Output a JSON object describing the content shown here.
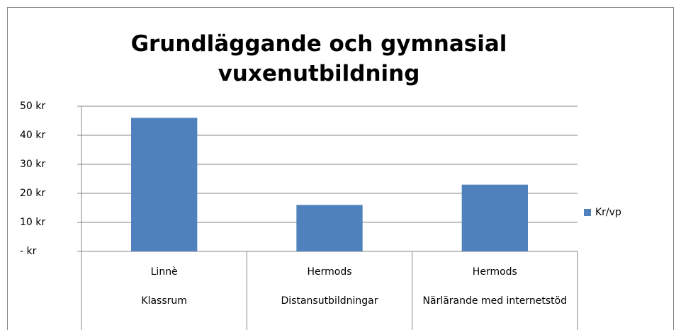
{
  "chart_data": {
    "type": "bar",
    "title": "Grundläggande och gymnasial vuxenutbildning",
    "category_groups": [
      "Linnè",
      "Hermods",
      "Hermods"
    ],
    "categories": [
      "Klassrum",
      "Distansutbildningar",
      "Närlärande med internetstöd"
    ],
    "series": [
      {
        "name": "Kr/vp",
        "color": "#4f81bd",
        "values": [
          46,
          16,
          23
        ]
      }
    ],
    "ylim": [
      0,
      50
    ],
    "yticks": [
      {
        "value": 0,
        "label": "-  kr"
      },
      {
        "value": 10,
        "label": "10 kr"
      },
      {
        "value": 20,
        "label": "20 kr"
      },
      {
        "value": 30,
        "label": "30 kr"
      },
      {
        "value": 40,
        "label": "40 kr"
      },
      {
        "value": 50,
        "label": "50 kr"
      }
    ],
    "grid": true,
    "legend": "right"
  }
}
